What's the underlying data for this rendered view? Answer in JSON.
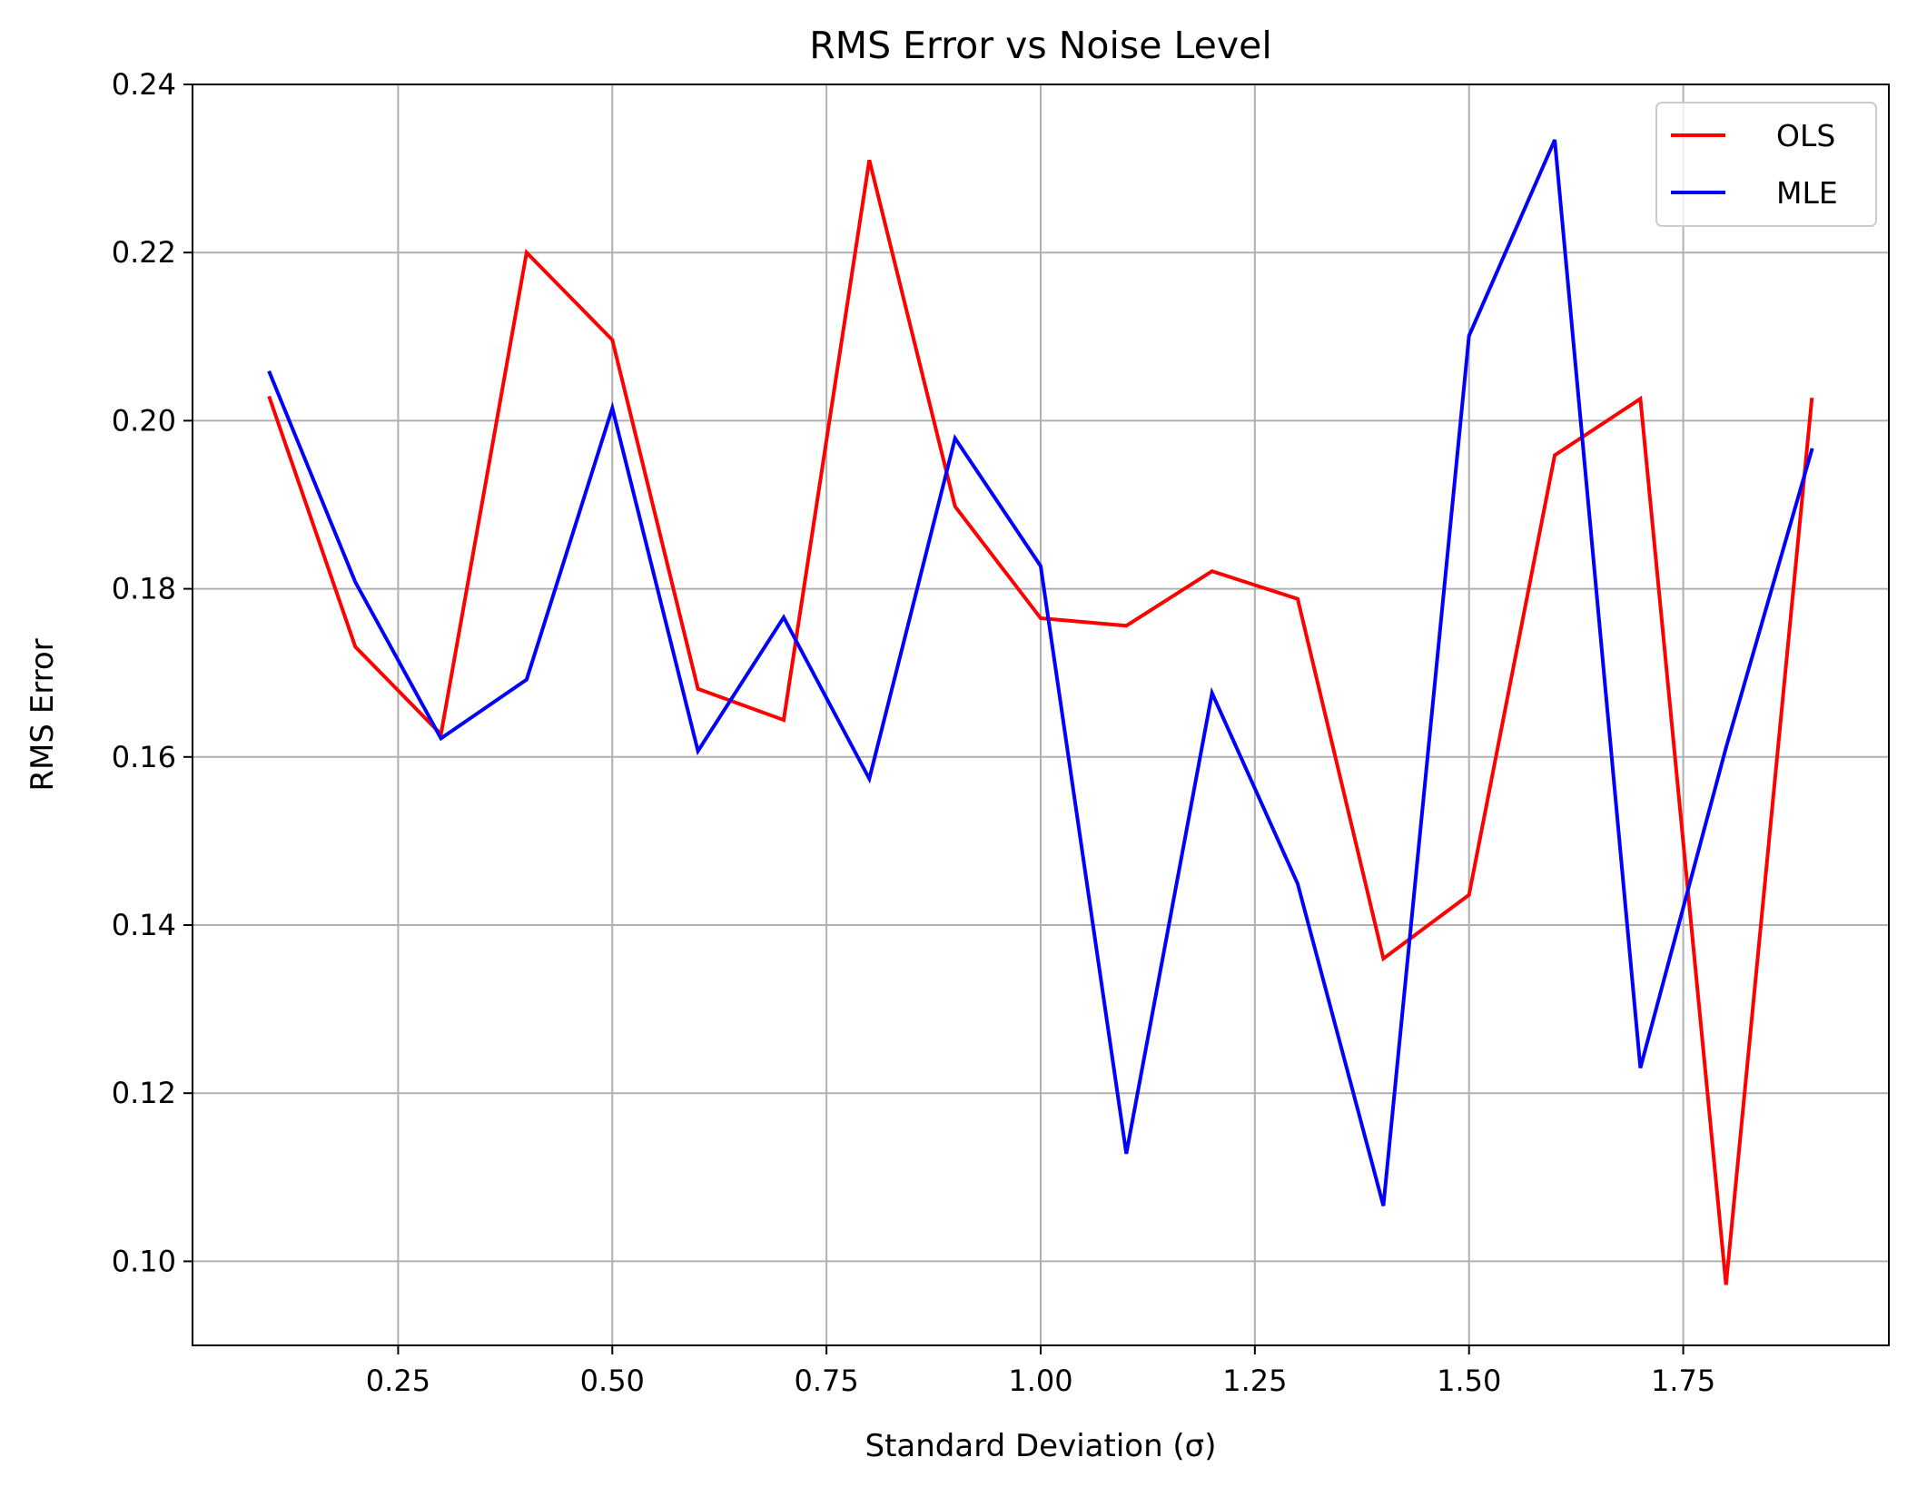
{
  "colors": {
    "grid": "#b0b0b0",
    "axes": "#000000",
    "legend_border": "#cccccc"
  },
  "chart_data": {
    "type": "line",
    "title": "RMS Error vs Noise Level",
    "xlabel": "Standard Deviation (σ)",
    "ylabel": "RMS Error",
    "xlim": [
      0.01,
      1.99
    ],
    "ylim": [
      0.09,
      0.24
    ],
    "xticks": [
      0.25,
      0.5,
      0.75,
      1.0,
      1.25,
      1.5,
      1.75
    ],
    "xtick_labels": [
      "0.25",
      "0.50",
      "0.75",
      "1.00",
      "1.25",
      "1.50",
      "1.75"
    ],
    "yticks": [
      0.1,
      0.12,
      0.14,
      0.16,
      0.18,
      0.2,
      0.22,
      0.24
    ],
    "ytick_labels": [
      "0.10",
      "0.12",
      "0.14",
      "0.16",
      "0.18",
      "0.20",
      "0.22",
      "0.24"
    ],
    "grid": true,
    "legend_position": "top-right",
    "x": [
      0.1,
      0.2,
      0.3,
      0.4,
      0.5,
      0.6,
      0.7,
      0.8,
      0.9,
      1.0,
      1.1,
      1.2,
      1.3,
      1.4,
      1.5,
      1.6,
      1.7,
      1.8,
      1.9
    ],
    "series": [
      {
        "name": "OLS",
        "color": "#ff0000",
        "values": [
          0.2027,
          0.1731,
          0.1627,
          0.22,
          0.2096,
          0.1681,
          0.1644,
          0.231,
          0.1898,
          0.1765,
          0.1756,
          0.1821,
          0.1788,
          0.136,
          0.1436,
          0.1959,
          0.2026,
          0.0972,
          0.2025
        ]
      },
      {
        "name": "MLE",
        "color": "#0000ff",
        "values": [
          0.2057,
          0.1808,
          0.1622,
          0.1692,
          0.2015,
          0.1607,
          0.1766,
          0.1574,
          0.1979,
          0.1827,
          0.1128,
          0.1676,
          0.1449,
          0.1066,
          0.2101,
          0.2334,
          0.123,
          0.1611,
          0.1965
        ]
      }
    ]
  }
}
